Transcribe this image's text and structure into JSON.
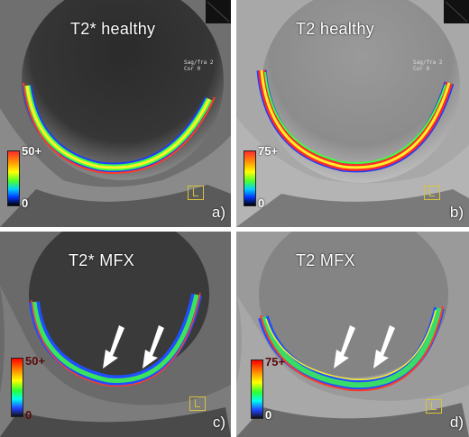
{
  "panels": {
    "a": {
      "title": "T2* healthy",
      "label": "a)",
      "scale_max": "50+",
      "scale_min": "0"
    },
    "b": {
      "title": "T2 healthy",
      "label": "b)",
      "scale_max": "75+",
      "scale_min": "0"
    },
    "c": {
      "title": "T2* MFX",
      "label": "c)",
      "scale_max": "50+",
      "scale_min": "0"
    },
    "d": {
      "title": "T2 MFX",
      "label": "d)",
      "scale_max": "75+",
      "scale_min": "0"
    }
  },
  "overlay_text": {
    "a": "Sag/fra 2\nCor 0",
    "b": "Sag/fra 2\nCor 0"
  },
  "colors": {
    "cartilage_outer": "#ff3a2a",
    "cartilage_mid": "#38ff40",
    "cartilage_inner": "#1f4fff",
    "arrow": "#ffffff",
    "marker": "#d8c23a"
  }
}
